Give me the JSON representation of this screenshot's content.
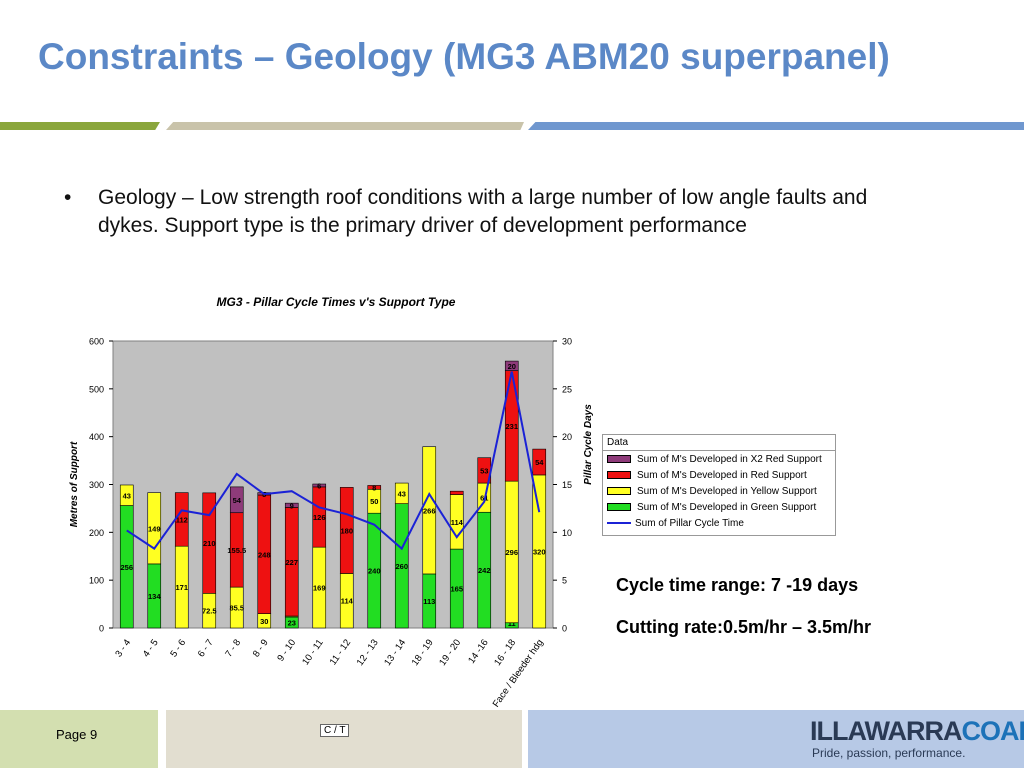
{
  "slide": {
    "title": "Constraints – Geology (MG3 ABM20 superpanel)",
    "bullet_mark": "•",
    "bullet": "Geology – Low strength roof conditions with a large number of low angle faults and dykes. Support type is the primary driver of development performance",
    "note1": "Cycle time range: 7 -19 days",
    "note2": "Cutting rate:0.5m/hr – 3.5m/hr",
    "page": "Page 9",
    "ct_box": "C / T",
    "logo_part1": "ILLAWARRA",
    "logo_part2": "COAL",
    "logo_tagline": "Pride, passion, performance.",
    "colors": {
      "title": "#5b88c7",
      "rule_green": "#8aa63c",
      "rule_tan": "#c9c3aa",
      "rule_blue": "#6f97cf"
    }
  },
  "chart_data": {
    "type": "bar",
    "stacked": true,
    "title": "MG3 - Pillar Cycle Times v's Support Type",
    "ylabel": "Metres of Support",
    "y2label": "Pillar Cycle Days",
    "ylim": [
      0,
      600
    ],
    "y2lim": [
      0,
      30
    ],
    "yticks": [
      0,
      100,
      200,
      300,
      400,
      500,
      600
    ],
    "y2ticks": [
      0,
      5,
      10,
      15,
      20,
      25,
      30
    ],
    "legend_title": "Data",
    "legend_position": "right",
    "categories": [
      "3 - 4",
      "4 - 5",
      "5 - 6",
      "6 - 7",
      "7 - 8",
      "8 - 9",
      "9 - 10",
      "10 - 11",
      "11 - 12",
      "12 - 13",
      "13 - 14",
      "18 - 19",
      "19 - 20",
      "14 -16",
      "16 - 18",
      "Face / Bleeder hdg"
    ],
    "series": [
      {
        "name": "Sum of M's Developed in Green Support",
        "color": "#22dd22",
        "values": [
          256,
          134,
          0,
          0,
          0,
          0,
          23,
          0,
          0,
          240,
          260,
          113,
          165,
          242,
          11,
          0
        ],
        "labels": [
          "256",
          "134",
          "",
          "",
          "",
          "",
          "23",
          "",
          "",
          "240",
          "260",
          "113",
          "165",
          "242",
          "11",
          ""
        ]
      },
      {
        "name": "Sum of M's Developed in Yellow Support",
        "color": "#ffff22",
        "values": [
          43,
          149,
          171,
          72.5,
          85.5,
          30,
          2,
          169,
          114,
          50,
          43,
          266,
          114,
          61,
          296,
          320
        ],
        "labels": [
          "43",
          "149",
          "171",
          "72.5",
          "85.5",
          "30",
          "",
          "169",
          "114",
          "50",
          "43",
          "266",
          "114",
          "61",
          "296",
          "320"
        ]
      },
      {
        "name": "Sum of M's Developed in Red Support",
        "color": "#ee1111",
        "values": [
          0,
          0,
          112,
          210,
          155.5,
          248,
          227,
          126,
          180,
          8,
          0,
          0,
          7,
          53,
          231,
          54
        ],
        "labels": [
          "",
          "",
          "112",
          "210",
          "155.5",
          "248",
          "227",
          "126",
          "180",
          "8",
          "",
          "",
          "",
          "53",
          "231",
          "54"
        ]
      },
      {
        "name": "Sum of M's Developed in X2 Red Support",
        "color": "#8e3b7a",
        "values": [
          0,
          0,
          0,
          0,
          54,
          5,
          9,
          6,
          0,
          0,
          0,
          0,
          0,
          0,
          20,
          0
        ],
        "labels": [
          "",
          "",
          "",
          "",
          "54",
          "5",
          "9",
          "6",
          "",
          "",
          "",
          "",
          "",
          "",
          "20",
          ""
        ]
      }
    ],
    "line": {
      "name": "Sum of Pillar Cycle Time",
      "color": "#1b22d6",
      "axis": "y2",
      "values": [
        10.2,
        8.3,
        12.3,
        11.8,
        16.1,
        14.0,
        14.3,
        12.6,
        11.9,
        10.8,
        8.3,
        14.0,
        9.5,
        13.2,
        26.8,
        12.1
      ]
    }
  }
}
